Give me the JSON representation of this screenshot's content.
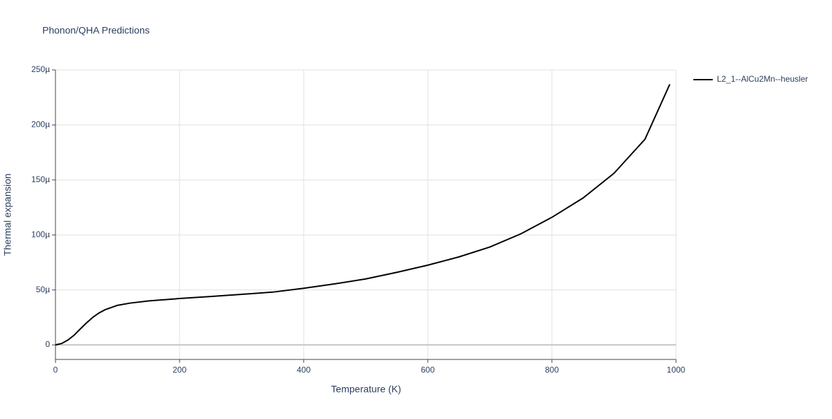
{
  "chart_data": {
    "type": "line",
    "title": "Phonon/QHA Predictions",
    "x_label": "Temperature (K)",
    "y_label": "Thermal expansion",
    "x": [
      0,
      10,
      20,
      30,
      40,
      50,
      60,
      70,
      80,
      100,
      120,
      150,
      200,
      250,
      300,
      350,
      400,
      450,
      500,
      550,
      600,
      650,
      700,
      750,
      800,
      850,
      900,
      950,
      990
    ],
    "series": [
      {
        "name": "L2_1--AlCu2Mn--heusler",
        "color": "#000000",
        "values": [
          0,
          1.3e-06,
          4.4e-06,
          8.8e-06,
          1.45e-05,
          2e-05,
          2.5e-05,
          2.9e-05,
          3.2e-05,
          3.6e-05,
          3.8e-05,
          4e-05,
          4.22e-05,
          4.4e-05,
          4.6e-05,
          4.8e-05,
          5.15e-05,
          5.55e-05,
          6e-05,
          6.6e-05,
          7.25e-05,
          8e-05,
          8.9e-05,
          0.000101,
          0.000116,
          0.0001335,
          0.000156,
          0.000187,
          0.000237
        ]
      }
    ],
    "xlim": [
      0,
      1000
    ],
    "xticks": [
      0,
      200,
      400,
      600,
      800,
      1000
    ],
    "ylim": [
      -1.32e-05,
      0.00025
    ],
    "yticks": [
      0,
      {
        "value": 5e-05,
        "label": "50µ"
      },
      {
        "value": 0.0001,
        "label": "100µ"
      },
      {
        "value": 0.00015,
        "label": "150µ"
      },
      {
        "value": 0.0002,
        "label": "200µ"
      },
      {
        "value": 0.00025,
        "label": "250µ"
      }
    ],
    "grid": true,
    "legend": "right"
  }
}
